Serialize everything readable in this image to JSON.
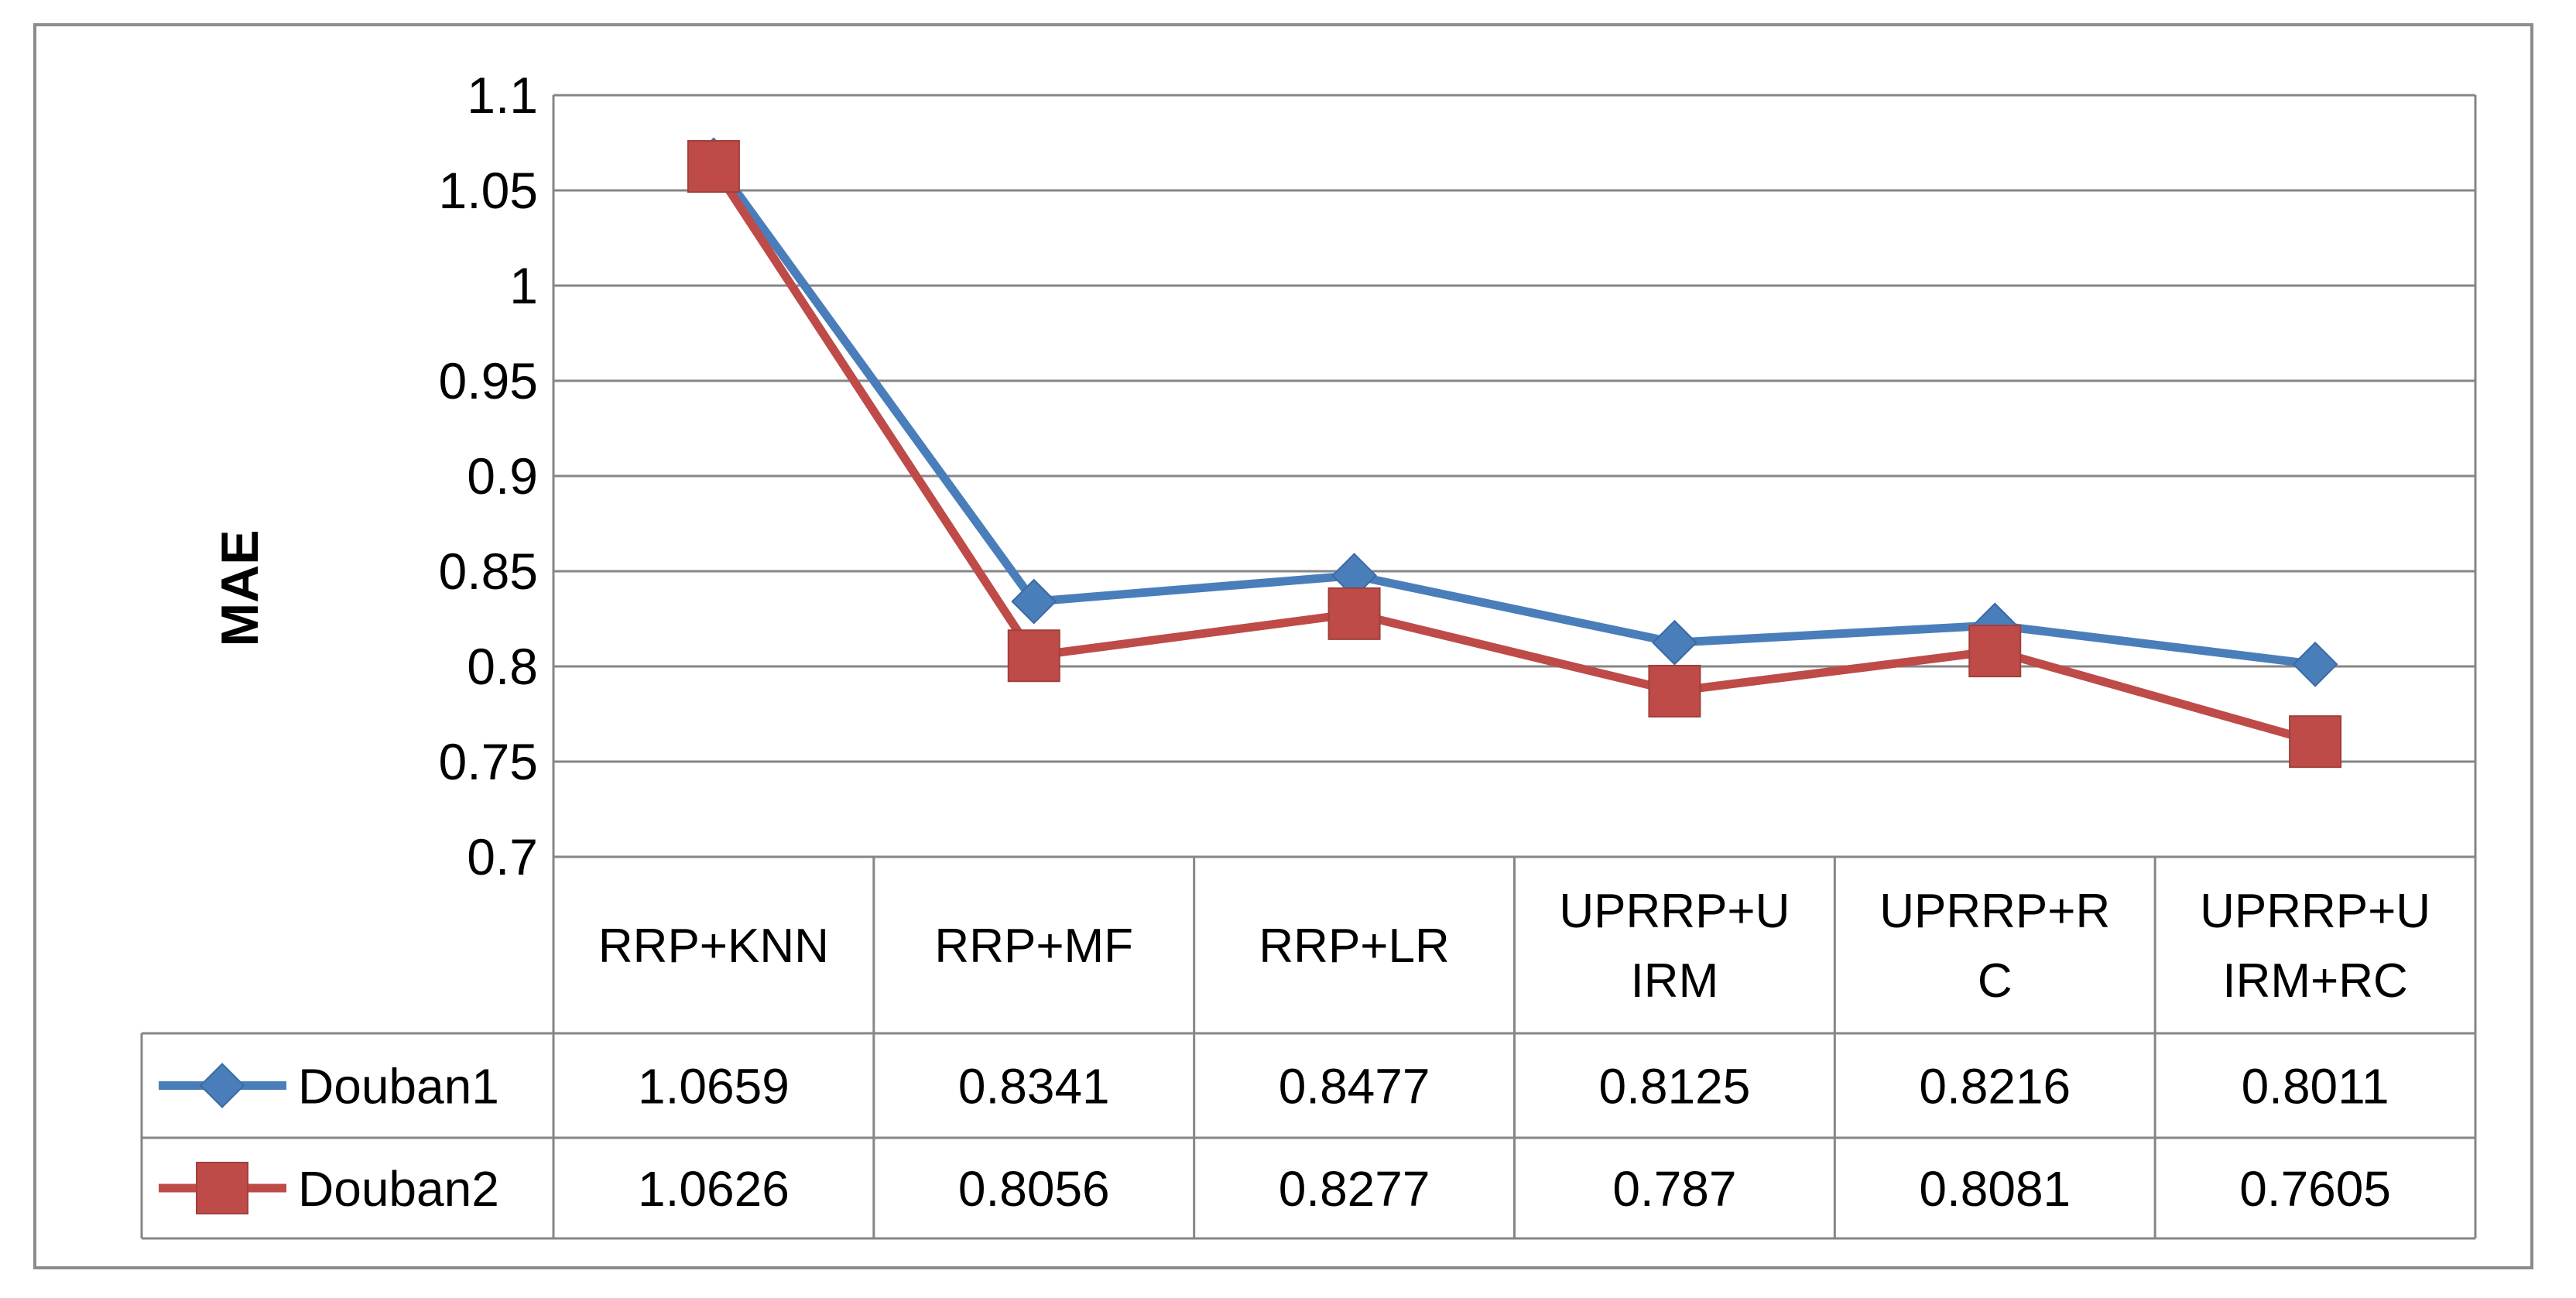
{
  "chart_data": {
    "type": "line",
    "title": "",
    "xlabel": "",
    "ylabel": "MAE",
    "ylim": [
      0.7,
      1.1
    ],
    "yticks": [
      "0.7",
      "0.75",
      "0.8",
      "0.85",
      "0.9",
      "0.95",
      "1",
      "1.05",
      "1.1"
    ],
    "categories": [
      [
        "RRP+KNN"
      ],
      [
        "RRP+MF"
      ],
      [
        "RRP+LR"
      ],
      [
        "UPRRP+U",
        "IRM"
      ],
      [
        "UPRRP+R",
        "C"
      ],
      [
        "UPRRP+U",
        "IRM+RC"
      ]
    ],
    "grid": true,
    "legend": "data-table",
    "series": [
      {
        "name": "Douban1",
        "color": "#4a7ebb",
        "marker": "diamond",
        "values": [
          1.0659,
          0.8341,
          0.8477,
          0.8125,
          0.8216,
          0.8011
        ],
        "labels": [
          "1.0659",
          "0.8341",
          "0.8477",
          "0.8125",
          "0.8216",
          "0.8011"
        ]
      },
      {
        "name": "Douban2",
        "color": "#be4b48",
        "marker": "square",
        "values": [
          1.0626,
          0.8056,
          0.8277,
          0.787,
          0.8081,
          0.7605
        ],
        "labels": [
          "1.0626",
          "0.8056",
          "0.8277",
          "0.787",
          "0.8081",
          "0.7605"
        ]
      }
    ]
  }
}
